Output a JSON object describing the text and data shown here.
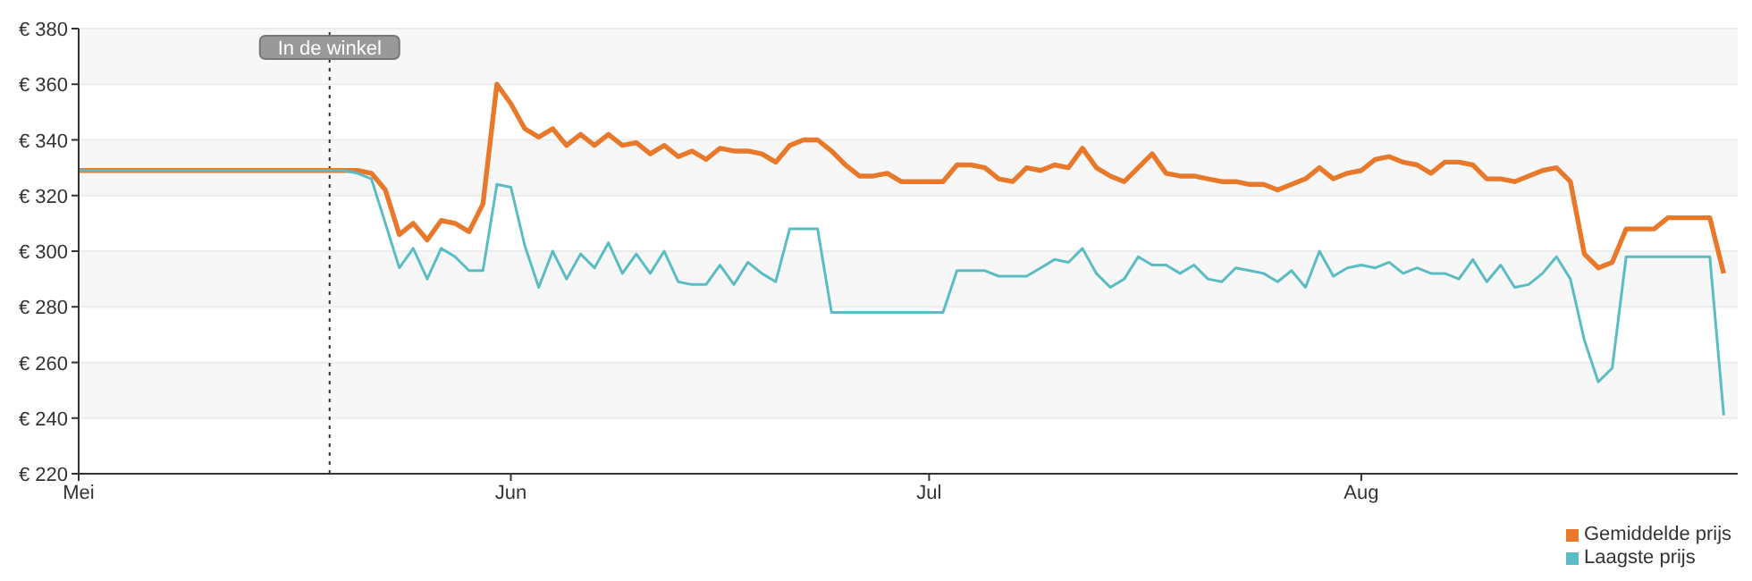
{
  "chart_data": {
    "type": "line",
    "x": [
      "--05-01",
      "--05-20",
      "--05-21",
      "--05-22",
      "--05-23",
      "--05-24",
      "--05-25",
      "--05-26",
      "--05-27",
      "--05-28",
      "--05-29",
      "--05-30",
      "--05-31",
      "--06-01",
      "--06-02",
      "--06-03",
      "--06-04",
      "--06-05",
      "--06-06",
      "--06-07",
      "--06-08",
      "--06-09",
      "--06-10",
      "--06-11",
      "--06-12",
      "--06-13",
      "--06-14",
      "--06-15",
      "--06-16",
      "--06-17",
      "--06-18",
      "--06-19",
      "--06-20",
      "--06-21",
      "--06-22",
      "--06-23",
      "--06-24",
      "--06-25",
      "--06-26",
      "--06-27",
      "--06-28",
      "--06-29",
      "--06-30",
      "--07-01",
      "--07-02",
      "--07-03",
      "--07-04",
      "--07-05",
      "--07-06",
      "--07-07",
      "--07-08",
      "--07-09",
      "--07-10",
      "--07-11",
      "--07-12",
      "--07-13",
      "--07-14",
      "--07-15",
      "--07-16",
      "--07-17",
      "--07-18",
      "--07-19",
      "--07-20",
      "--07-21",
      "--07-22",
      "--07-23",
      "--07-24",
      "--07-25",
      "--07-26",
      "--07-27",
      "--07-28",
      "--07-29",
      "--07-30",
      "--07-31",
      "--08-01",
      "--08-02",
      "--08-03",
      "--08-04",
      "--08-05",
      "--08-06",
      "--08-07",
      "--08-08",
      "--08-09",
      "--08-10",
      "--08-11",
      "--08-12",
      "--08-13",
      "--08-14",
      "--08-15",
      "--08-16",
      "--08-17",
      "--08-18",
      "--08-19",
      "--08-20",
      "--08-21",
      "--08-22",
      "--08-23",
      "--08-24",
      "--08-25",
      "--08-26",
      "--08-27"
    ],
    "series": [
      {
        "name": "Gemiddelde prijs",
        "color": "#e8792a",
        "values": [
          329,
          329,
          329,
          328,
          322,
          306,
          310,
          304,
          311,
          310,
          307,
          317,
          360,
          353,
          344,
          341,
          344,
          338,
          342,
          338,
          342,
          338,
          339,
          335,
          338,
          334,
          336,
          333,
          337,
          336,
          336,
          335,
          332,
          338,
          340,
          340,
          336,
          331,
          327,
          327,
          328,
          325,
          325,
          325,
          325,
          331,
          331,
          330,
          326,
          325,
          330,
          329,
          331,
          330,
          337,
          330,
          327,
          325,
          330,
          335,
          328,
          327,
          327,
          326,
          325,
          325,
          324,
          324,
          322,
          324,
          326,
          330,
          326,
          328,
          329,
          333,
          334,
          332,
          331,
          328,
          332,
          332,
          331,
          326,
          326,
          325,
          327,
          329,
          330,
          325,
          299,
          294,
          296,
          308,
          308,
          308,
          312,
          312,
          312,
          312,
          292
        ]
      },
      {
        "name": "Laagste prijs",
        "color": "#5bbcc4",
        "values": [
          329,
          329,
          328,
          326,
          310,
          294,
          301,
          290,
          301,
          298,
          293,
          293,
          324,
          323,
          302,
          287,
          300,
          290,
          299,
          294,
          303,
          292,
          299,
          292,
          300,
          289,
          288,
          288,
          295,
          288,
          296,
          292,
          289,
          308,
          308,
          308,
          278,
          278,
          278,
          278,
          278,
          278,
          278,
          278,
          278,
          293,
          293,
          293,
          291,
          291,
          291,
          294,
          297,
          296,
          301,
          292,
          287,
          290,
          298,
          295,
          295,
          292,
          295,
          290,
          289,
          294,
          293,
          292,
          289,
          293,
          287,
          300,
          291,
          294,
          295,
          294,
          296,
          292,
          294,
          292,
          292,
          290,
          297,
          289,
          295,
          287,
          288,
          292,
          298,
          290,
          268,
          253,
          258,
          298,
          298,
          298,
          298,
          298,
          298,
          298,
          241
        ]
      }
    ],
    "xlim": [
      "--05-01",
      "--08-28"
    ],
    "xticks": [
      {
        "value": "--05-01",
        "label": "Mei"
      },
      {
        "value": "--06-01",
        "label": "Jun"
      },
      {
        "value": "--07-01",
        "label": "Jul"
      },
      {
        "value": "--08-01",
        "label": "Aug"
      }
    ],
    "ylim": [
      220,
      380
    ],
    "yticks": [
      {
        "value": 220,
        "label": "€ 220"
      },
      {
        "value": 240,
        "label": "€ 240"
      },
      {
        "value": 260,
        "label": "€ 260"
      },
      {
        "value": 280,
        "label": "€ 280"
      },
      {
        "value": 300,
        "label": "€ 300"
      },
      {
        "value": 320,
        "label": "€ 320"
      },
      {
        "value": 340,
        "label": "€ 340"
      },
      {
        "value": 360,
        "label": "€ 360"
      },
      {
        "value": 380,
        "label": "€ 380"
      }
    ],
    "ref_lines": [
      {
        "axis": "x",
        "value": "--05-19",
        "label": "In de winkel",
        "color": "#333333",
        "line_style": "dotted"
      }
    ],
    "grid": "y",
    "legend": "bottom right"
  }
}
